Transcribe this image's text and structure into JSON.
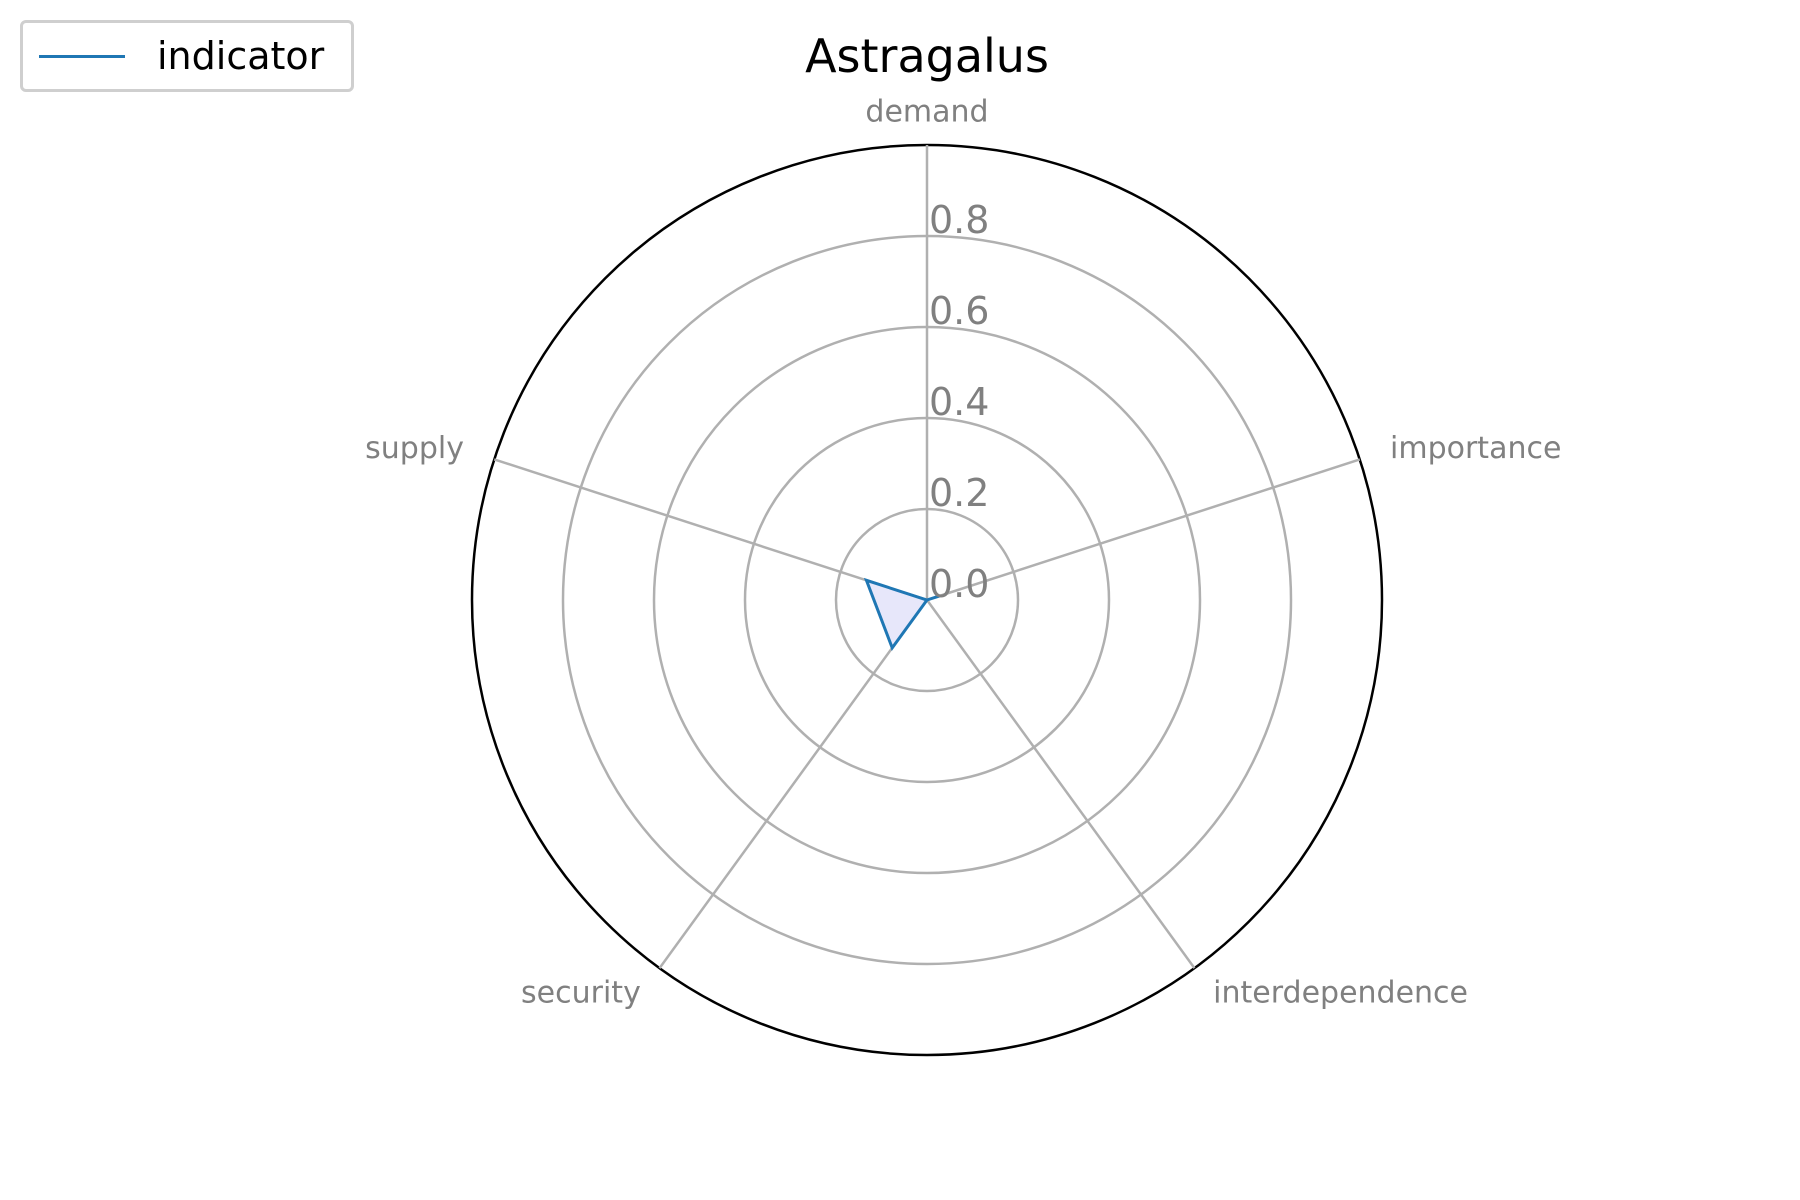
{
  "chart_data": {
    "type": "radar",
    "title": "Astragalus",
    "categories": [
      "demand",
      "importance",
      "interdependence",
      "security",
      "supply"
    ],
    "series": [
      {
        "name": "indicator",
        "values": [
          0.0,
          0.03,
          0.0,
          0.13,
          0.14
        ]
      }
    ],
    "rlim": [
      0.0,
      1.0
    ],
    "r_ticks": [
      0.0,
      0.2,
      0.4,
      0.6,
      0.8
    ],
    "grid": true,
    "legend_position": "top-left",
    "colors": {
      "line": "#1f77b4",
      "fill": "#e6e6fa",
      "grid": "#b0b0b0",
      "frame": "#000000",
      "labels": "#808080"
    }
  }
}
